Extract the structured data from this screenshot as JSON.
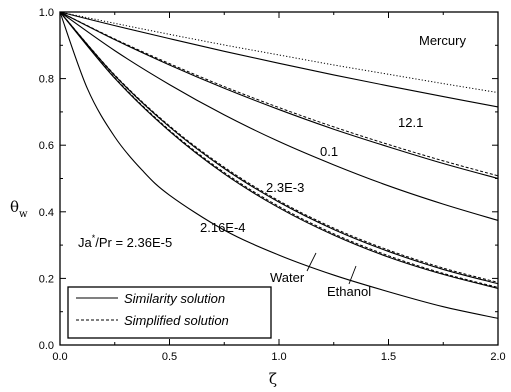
{
  "chart_data": {
    "type": "line",
    "xlabel": "ζ",
    "ylabel_main": "θ",
    "ylabel_sub": "w",
    "xlim": [
      0.0,
      2.0
    ],
    "ylim": [
      0.0,
      1.0
    ],
    "x_ticks": [
      "0.0",
      "0.5",
      "1.0",
      "1.5",
      "2.0"
    ],
    "y_ticks": [
      "0.0",
      "0.2",
      "0.4",
      "0.6",
      "0.8",
      "1.0"
    ],
    "grid": false,
    "legend": {
      "placement": "bottom-left",
      "entries": [
        {
          "label": "Similarity solution",
          "style": "solid"
        },
        {
          "label": "Simplified solution",
          "style": "dashed"
        }
      ]
    },
    "annotations": {
      "fluid": "Mercury",
      "ratio_prefix": "Ja",
      "ratio_star": "*",
      "ratio_suffix": "/Pr = 2.36E-5",
      "water": "Water",
      "ethanol": "Ethanol",
      "v12": "12.1",
      "v01": "0.1",
      "v23e3": "2.3E-3",
      "v216e4": "2.16E-4"
    },
    "series": [
      {
        "label": "12.1",
        "style": "solid",
        "x": [
          0,
          0.25,
          0.5,
          0.75,
          1.0,
          1.25,
          1.5,
          1.75,
          2.0
        ],
        "y": [
          1.0,
          0.959,
          0.92,
          0.882,
          0.846,
          0.811,
          0.778,
          0.746,
          0.715
        ]
      },
      {
        "label": "12.1",
        "style": "dotted",
        "x": [
          0,
          0.25,
          0.5,
          0.75,
          1.0,
          1.25,
          1.5,
          1.75,
          2.0
        ],
        "y": [
          1.0,
          0.966,
          0.933,
          0.901,
          0.871,
          0.841,
          0.813,
          0.785,
          0.758
        ]
      },
      {
        "label": "0.1",
        "style": "solid",
        "x": [
          0,
          0.25,
          0.5,
          0.75,
          1.0,
          1.25,
          1.5,
          1.75,
          2.0
        ],
        "y": [
          1.0,
          0.917,
          0.841,
          0.771,
          0.707,
          0.648,
          0.595,
          0.545,
          0.5
        ]
      },
      {
        "label": "0.1",
        "style": "dashed",
        "x": [
          0,
          0.25,
          0.5,
          0.75,
          1.0,
          1.25,
          1.5,
          1.75,
          2.0
        ],
        "y": [
          1.0,
          0.919,
          0.845,
          0.776,
          0.713,
          0.655,
          0.602,
          0.553,
          0.508
        ]
      },
      {
        "label": "2.3E-3",
        "style": "solid",
        "x": [
          0,
          0.25,
          0.5,
          0.75,
          1.0,
          1.25,
          1.5,
          1.75,
          2.0
        ],
        "y": [
          1.0,
          0.884,
          0.782,
          0.691,
          0.611,
          0.541,
          0.478,
          0.423,
          0.374
        ]
      },
      {
        "label": "2.16E-4 / Ethanol",
        "style": "solid",
        "x": [
          0,
          0.25,
          0.5,
          0.75,
          1.0,
          1.25,
          1.5,
          1.75,
          2.0
        ],
        "y": [
          1.0,
          0.801,
          0.642,
          0.514,
          0.412,
          0.33,
          0.264,
          0.212,
          0.17
        ]
      },
      {
        "label": "2.16E-4 / Ethanol",
        "style": "dashed",
        "x": [
          0,
          0.25,
          0.5,
          0.75,
          1.0,
          1.25,
          1.5,
          1.75,
          2.0
        ],
        "y": [
          1.0,
          0.803,
          0.645,
          0.518,
          0.416,
          0.334,
          0.268,
          0.215,
          0.173
        ]
      },
      {
        "label": "Water",
        "style": "solid",
        "x": [
          0,
          0.25,
          0.5,
          0.75,
          1.0,
          1.25,
          1.5,
          1.75,
          2.0
        ],
        "y": [
          1.0,
          0.809,
          0.655,
          0.53,
          0.429,
          0.347,
          0.281,
          0.227,
          0.184
        ]
      },
      {
        "label": "Water",
        "style": "dashed",
        "x": [
          0,
          0.25,
          0.5,
          0.75,
          1.0,
          1.25,
          1.5,
          1.75,
          2.0
        ],
        "y": [
          1.0,
          0.811,
          0.658,
          0.534,
          0.433,
          0.351,
          0.285,
          0.231,
          0.188
        ]
      },
      {
        "label": "2.36E-5",
        "style": "solid",
        "x": [
          0,
          0.125,
          0.25,
          0.375,
          0.5,
          0.75,
          1.0,
          1.25,
          1.5,
          1.75,
          2.0
        ],
        "y": [
          1.0,
          0.77,
          0.625,
          0.525,
          0.45,
          0.345,
          0.27,
          0.21,
          0.16,
          0.115,
          0.08
        ]
      }
    ]
  }
}
